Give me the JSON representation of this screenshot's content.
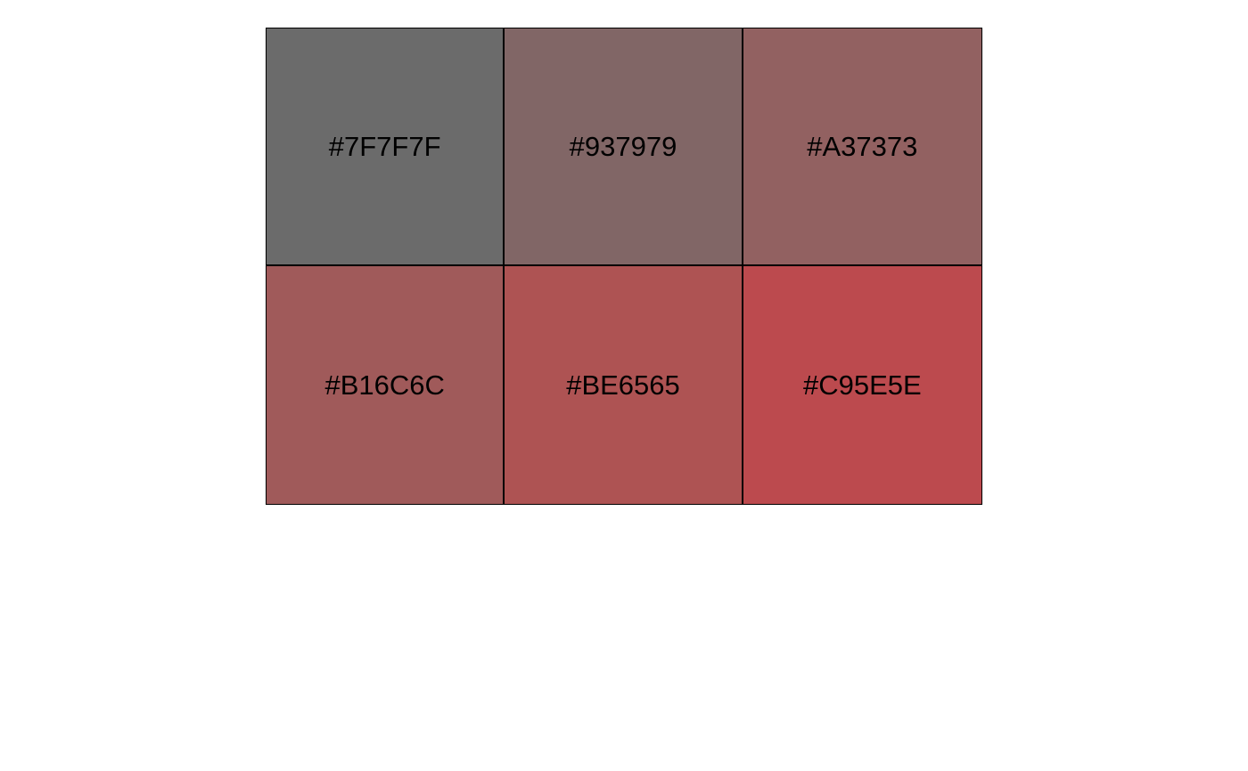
{
  "swatches": [
    {
      "label": "#7F7F7F",
      "fill": "#6B6B6B"
    },
    {
      "label": "#937979",
      "fill": "#816666"
    },
    {
      "label": "#A37373",
      "fill": "#926161"
    },
    {
      "label": "#B16C6C",
      "fill": "#A05A5A"
    },
    {
      "label": "#BE6565",
      "fill": "#AE5353"
    },
    {
      "label": "#C95E5E",
      "fill": "#BC4A4E"
    }
  ]
}
